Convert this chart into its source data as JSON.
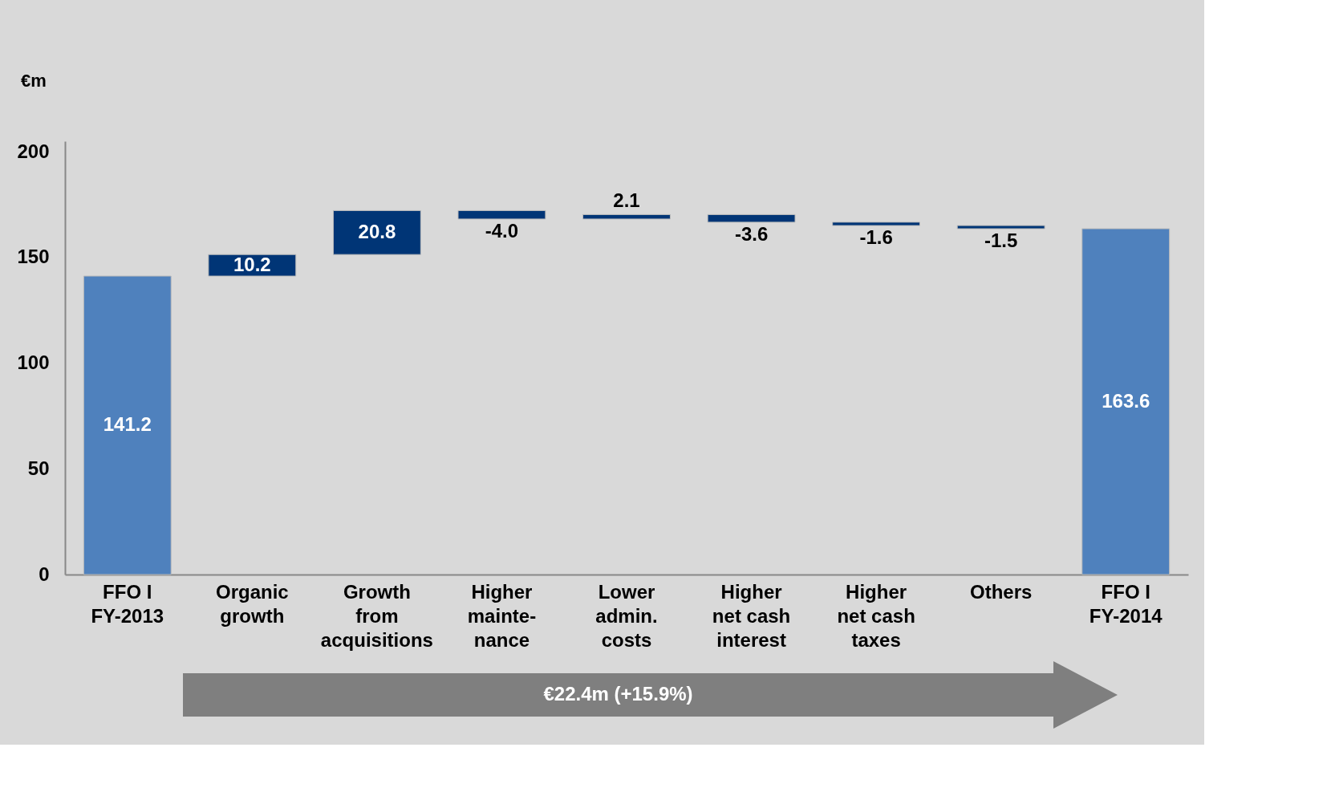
{
  "chart_data": {
    "type": "bar",
    "ylabel": "€m",
    "categories": [
      "FFO I\nFY-2013",
      "Organic\ngrowth",
      "Growth\nfrom\nacquisitions",
      "Higher\nmainte-\nnance",
      "Lower\nadmin.\ncosts",
      "Higher\nnet cash\ninterest",
      "Higher\nnet cash\ntaxes",
      "Others",
      "FFO I\nFY-2014"
    ],
    "values": [
      141.2,
      10.2,
      20.8,
      -4.0,
      2.1,
      -3.6,
      -1.6,
      -1.5,
      163.6
    ],
    "base": [
      0,
      141.2,
      151.4,
      172.2,
      168.2,
      170.3,
      166.7,
      165.1,
      0
    ],
    "colors": [
      "#4f81bd",
      "#003576",
      "#003576",
      "#003576",
      "#003576",
      "#003576",
      "#003576",
      "#003576",
      "#4f81bd"
    ],
    "ylim": [
      0,
      205
    ],
    "yticks": [
      0,
      50,
      100,
      150,
      200
    ],
    "value_labels": [
      "141.2",
      "10.2",
      "20.8",
      "-4.0",
      "2.1",
      "-3.6",
      "-1.6",
      "-1.5",
      "163.6"
    ],
    "annotations": [
      "€22.4m (+15.9%)"
    ]
  }
}
